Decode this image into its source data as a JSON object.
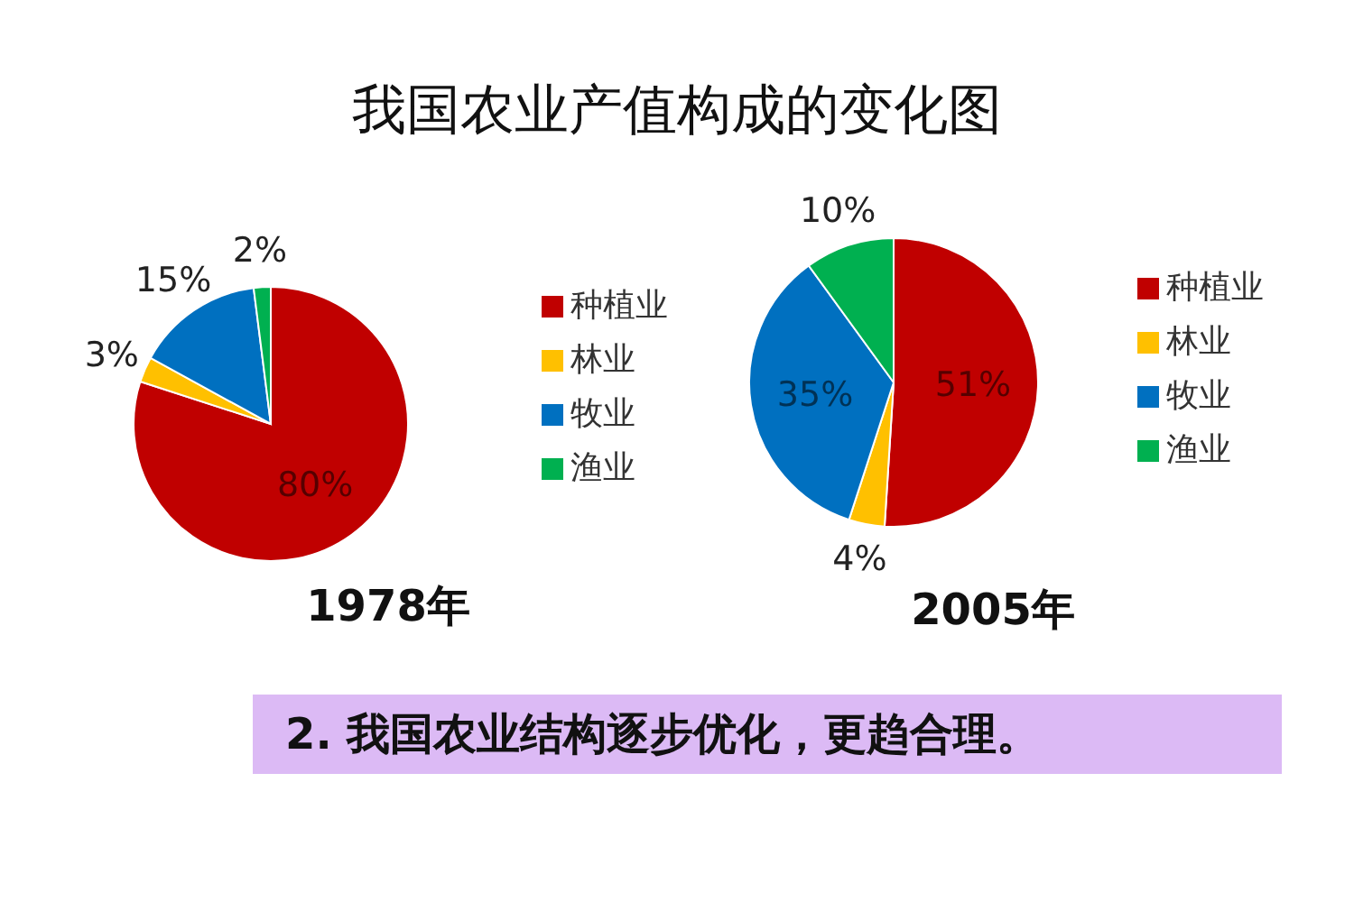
{
  "chart_data": [
    {
      "type": "other",
      "title": "我国农业产值构成的变化图"
    },
    {
      "type": "pie",
      "title": "1978年",
      "categories": [
        "种植业",
        "林业",
        "牧业",
        "渔业"
      ],
      "values": [
        80,
        3,
        15,
        2
      ],
      "colors": [
        "#c00000",
        "#ffc000",
        "#0070c0",
        "#00b050"
      ],
      "value_labels": [
        "80%",
        "3%",
        "15%",
        "2%"
      ],
      "legend": "right"
    },
    {
      "type": "pie",
      "title": "2005年",
      "categories": [
        "种植业",
        "林业",
        "牧业",
        "渔业"
      ],
      "values": [
        51,
        4,
        35,
        10
      ],
      "colors": [
        "#c00000",
        "#ffc000",
        "#0070c0",
        "#00b050"
      ],
      "value_labels": [
        "51%",
        "4%",
        "35%",
        "10%"
      ],
      "legend": "right"
    },
    {
      "type": "other",
      "annotations": [
        "2. 我国农业结构逐步优化，更趋合理。"
      ]
    }
  ]
}
